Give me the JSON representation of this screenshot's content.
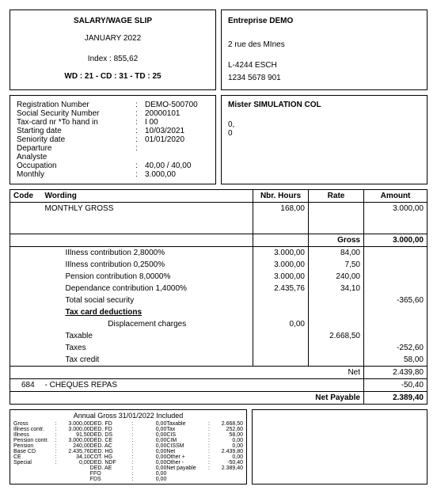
{
  "header": {
    "title": "SALARY/WAGE SLIP",
    "period": "JANUARY 2022",
    "index_label": "Index : 855,62",
    "summary": "WD : 21 - CD : 31 - TD : 25"
  },
  "company": {
    "name": "Entreprise DEMO",
    "address1": "2 rue des MInes",
    "address2": "L-4244 ESCH",
    "phone": "1234 5678 901"
  },
  "registration": {
    "reg_label": "Registration Number",
    "reg_val": "DEMO-500700",
    "ssn_label": "Social Security Number",
    "ssn_val": "20000101",
    "tax_label": "Tax-card nr    *To hand in",
    "tax_val": "I 00",
    "start_label": "Starting date",
    "start_val": "10/03/2021",
    "sen_label": "Seniority date",
    "sen_val": "01/01/2020",
    "dep_label": "Departure",
    "dep_val": "",
    "job_label": "Analyste",
    "occ_label": "Occupation",
    "occ_val": "40,00 / 40,00",
    "monthly_label": "Monthly",
    "monthly_val": "3.000,00"
  },
  "employee": {
    "name": "Mister SIMULATION COL",
    "line1": "0,",
    "line2": "0"
  },
  "table": {
    "head_code": "Code",
    "head_wording": "Wording",
    "head_hours": "Nbr. Hours",
    "head_rate": "Rate",
    "head_amount": "Amount",
    "monthly_gross": "MONTHLY GROSS",
    "monthly_hours": "168,00",
    "monthly_amount": "3.000,00",
    "gross_label": "Gross",
    "gross_amount": "3.000,00",
    "illness1_label": "IIlness contribution 2,8000%",
    "illness1_base": "3.000,00",
    "illness1_rate": "84,00",
    "illness2_label": "IIlness contribution 0,2500%",
    "illness2_base": "3.000,00",
    "illness2_rate": "7,50",
    "pension_label": "Pension contribution 8,0000%",
    "pension_base": "3.000,00",
    "pension_rate": "240,00",
    "dep_label": "Dependance contribution 1,4000%",
    "dep_base": "2.435,76",
    "dep_rate": "34,10",
    "total_ss_label": "Total social security",
    "total_ss_amount": "-365,60",
    "tax_card_label": "Tax card deductions",
    "displacement_label": "Displacement charges",
    "displacement_val": "0,00",
    "taxable_label": "Taxable",
    "taxable_val": "2.668,50",
    "taxes_label": "Taxes",
    "taxes_val": "-252,60",
    "tax_credit_label": "Tax credit",
    "tax_credit_val": "58,00",
    "net_label": "Net",
    "net_val": "2.439,80",
    "cheques_code": "684",
    "cheques_label": "- CHEQUES REPAS",
    "cheques_val": "-50,40",
    "net_payable_label": "Net Payable",
    "net_payable_val": "2.389,40"
  },
  "annual": {
    "title": "Annual Gross 31/01/2022 Included",
    "col1": [
      {
        "l": "Gross",
        "v": "3.000,00"
      },
      {
        "l": "Illness contr.",
        "v": "3.000,00"
      },
      {
        "l": "Illness",
        "v": "91,50"
      },
      {
        "l": "Pension contr.",
        "v": "3.000,00"
      },
      {
        "l": "Pension",
        "v": "240,00"
      },
      {
        "l": "Base CD",
        "v": "2.435,76"
      },
      {
        "l": "CE",
        "v": "34,10"
      },
      {
        "l": "Special",
        "v": "0,00"
      }
    ],
    "col2": [
      {
        "l": "DED. FD",
        "v": "0,00"
      },
      {
        "l": "DED. FD",
        "v": "0,00"
      },
      {
        "l": "DED. DS",
        "v": "0,00"
      },
      {
        "l": "DED. CE",
        "v": "0,00"
      },
      {
        "l": "DED. AC",
        "v": "0,00"
      },
      {
        "l": "DED. HG",
        "v": "0,00"
      },
      {
        "l": "COT. HG",
        "v": "0,00"
      },
      {
        "l": "DED. NDF",
        "v": "0,00"
      },
      {
        "l": "DED. AE",
        "v": "0,00"
      },
      {
        "l": "FFO",
        "v": "0,00"
      },
      {
        "l": "FDS",
        "v": "0,00"
      }
    ],
    "col3": [
      {
        "l": "Taxable",
        "v": "2.668,50"
      },
      {
        "l": "Tax",
        "v": "252,60"
      },
      {
        "l": "CIS",
        "v": "58,00"
      },
      {
        "l": "CIM",
        "v": "0,00"
      },
      {
        "l": "CISSM",
        "v": "0,00"
      },
      {
        "l": "Net",
        "v": "2.439,80"
      },
      {
        "l": "Other +",
        "v": "0,00"
      },
      {
        "l": "Other -",
        "v": "-50,40"
      },
      {
        "l": "Net payable",
        "v": "2.389,40"
      }
    ]
  }
}
